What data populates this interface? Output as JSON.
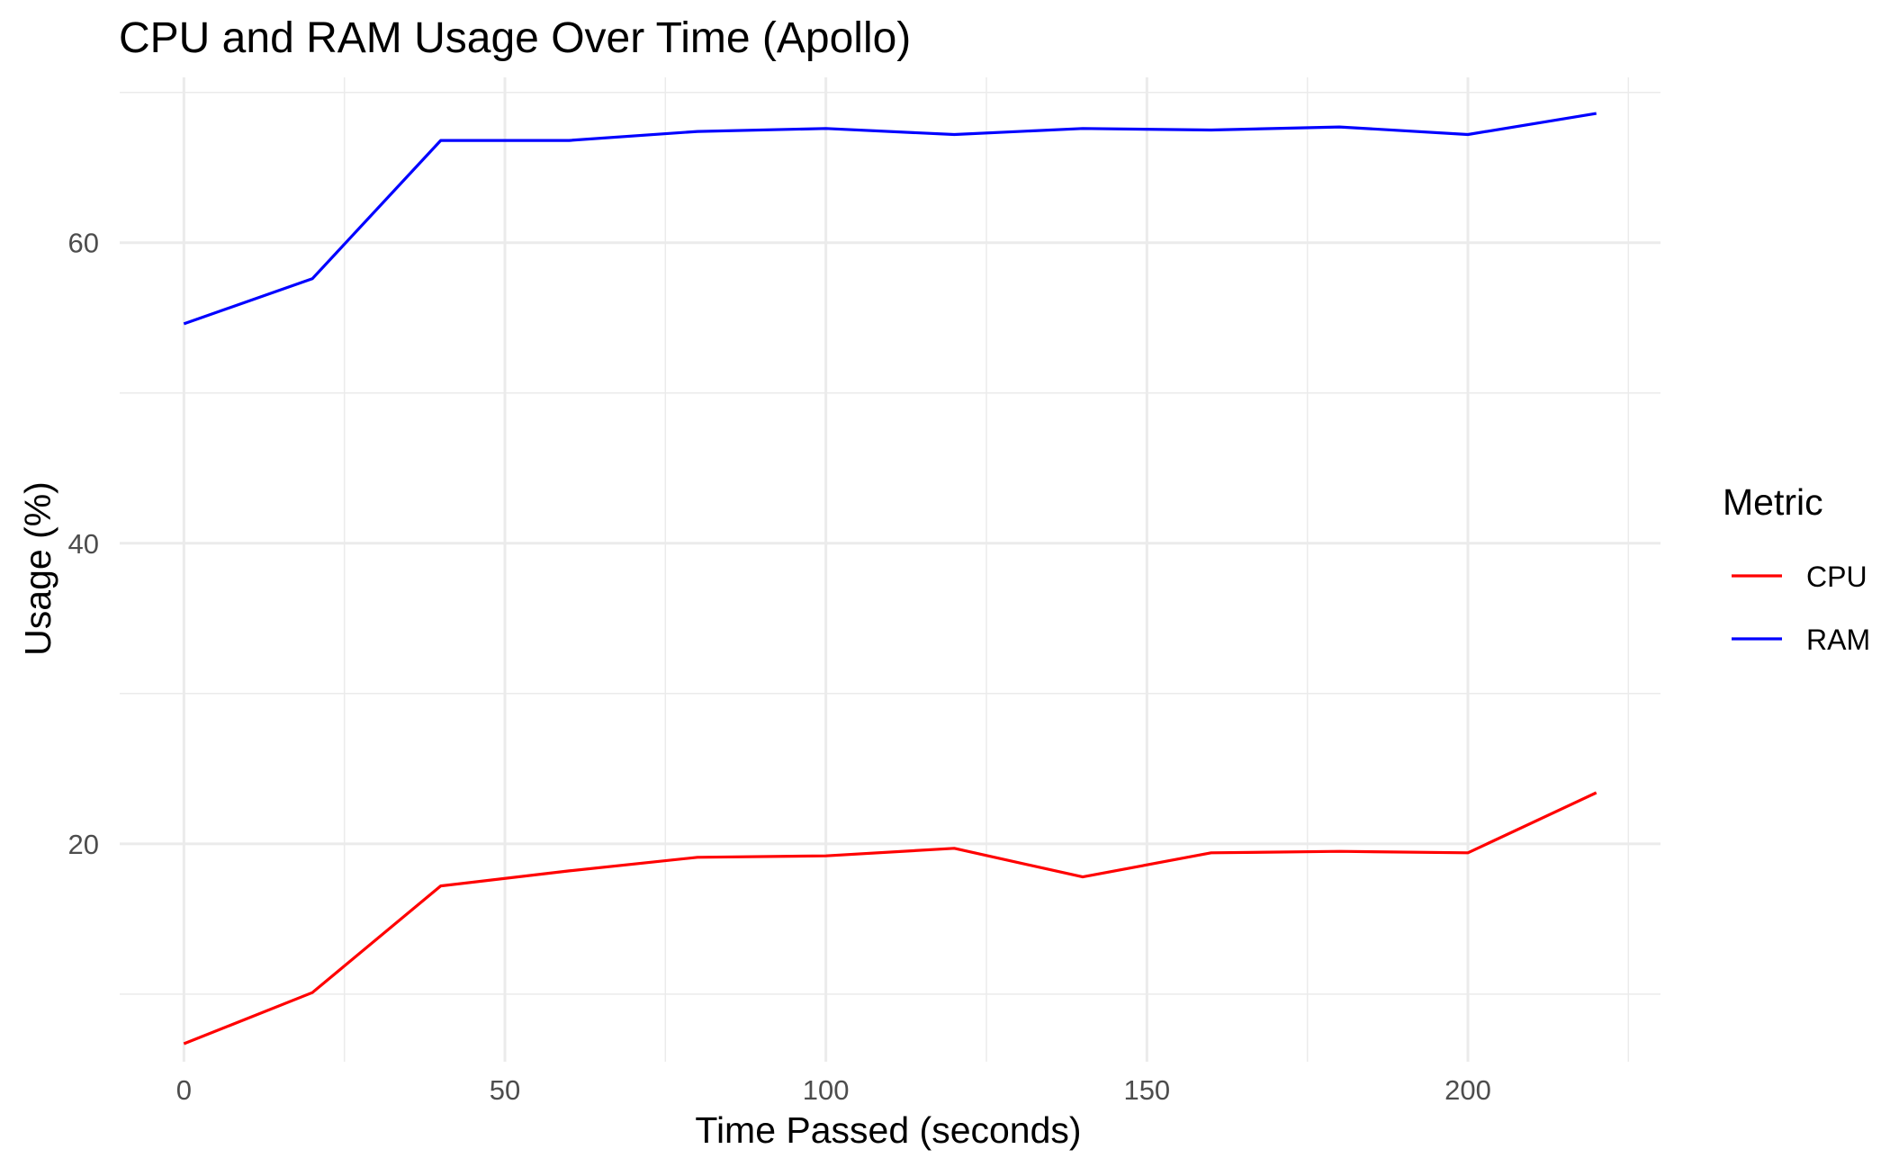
{
  "chart_data": {
    "type": "line",
    "title": "CPU and RAM Usage Over Time (Apollo)",
    "xlabel": "Time Passed (seconds)",
    "ylabel": "Usage (%)",
    "xlim": [
      -10,
      230
    ],
    "ylim": [
      5.5,
      71
    ],
    "x_ticks": [
      0,
      50,
      100,
      150,
      200
    ],
    "x_tick_labels": [
      "0",
      "50",
      "100",
      "150",
      "200"
    ],
    "x_minor_ticks": [
      25,
      75,
      125,
      175,
      225
    ],
    "y_ticks": [
      20,
      40,
      60
    ],
    "y_tick_labels": [
      "20",
      "40",
      "60"
    ],
    "y_minor_ticks": [
      10,
      30,
      50,
      70
    ],
    "grid": true,
    "legend": {
      "title": "Metric",
      "position": "right"
    },
    "x": [
      0,
      20,
      40,
      60,
      80,
      100,
      120,
      140,
      160,
      180,
      200,
      220
    ],
    "series": [
      {
        "name": "CPU",
        "color": "#ff0000",
        "values": [
          6.7,
          10.1,
          17.2,
          18.2,
          19.1,
          19.2,
          19.7,
          17.8,
          19.4,
          19.5,
          19.4,
          23.4
        ]
      },
      {
        "name": "RAM",
        "color": "#0000ff",
        "values": [
          54.6,
          57.6,
          66.8,
          66.8,
          67.4,
          67.6,
          67.2,
          67.6,
          67.5,
          67.7,
          67.2,
          68.6
        ]
      }
    ]
  }
}
